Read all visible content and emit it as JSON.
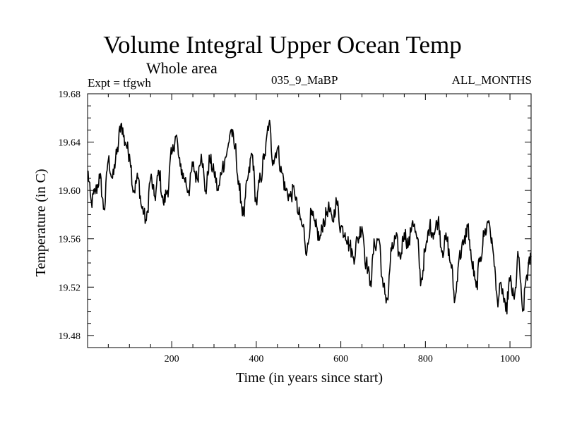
{
  "chart_data": {
    "type": "line",
    "title": "Volume Integral Upper Ocean Temp",
    "subtitle": "Whole area",
    "experiment_label": "Expt = tfgwh",
    "run_label": "035_9_MaBP",
    "months_label": "ALL_MONTHS",
    "xlabel": "Time (in years since start)",
    "ylabel": "Temperature (in C)",
    "xlim": [
      1,
      1050
    ],
    "ylim": [
      19.47,
      19.68
    ],
    "xticks": [
      200,
      400,
      600,
      800,
      1000
    ],
    "yticks": [
      19.48,
      19.52,
      19.56,
      19.6,
      19.64,
      19.68
    ],
    "ytick_labels": [
      "19.48",
      "19.52",
      "19.56",
      "19.60",
      "19.64",
      "19.68"
    ],
    "series": [
      {
        "name": "tfgwh",
        "color": "#000000",
        "x": [
          1,
          10,
          20,
          30,
          40,
          50,
          60,
          70,
          80,
          90,
          100,
          110,
          120,
          130,
          140,
          150,
          160,
          170,
          180,
          190,
          200,
          210,
          220,
          230,
          240,
          250,
          260,
          270,
          280,
          290,
          300,
          310,
          320,
          330,
          340,
          350,
          360,
          370,
          380,
          390,
          400,
          410,
          420,
          430,
          440,
          450,
          460,
          470,
          480,
          490,
          500,
          510,
          520,
          530,
          540,
          550,
          560,
          570,
          580,
          590,
          600,
          610,
          620,
          630,
          640,
          650,
          660,
          670,
          680,
          690,
          700,
          710,
          720,
          730,
          740,
          750,
          760,
          770,
          780,
          790,
          800,
          810,
          820,
          830,
          840,
          850,
          860,
          870,
          880,
          890,
          900,
          910,
          920,
          930,
          940,
          950,
          960,
          970,
          980,
          990,
          1000,
          1010,
          1020,
          1030,
          1040,
          1050
        ],
        "y": [
          19.615,
          19.59,
          19.6,
          19.61,
          19.585,
          19.625,
          19.61,
          19.63,
          19.655,
          19.64,
          19.63,
          19.6,
          19.61,
          19.585,
          19.575,
          19.61,
          19.595,
          19.615,
          19.59,
          19.6,
          19.63,
          19.645,
          19.62,
          19.61,
          19.6,
          19.62,
          19.61,
          19.63,
          19.6,
          19.625,
          19.615,
          19.6,
          19.62,
          19.63,
          19.65,
          19.635,
          19.6,
          19.58,
          19.61,
          19.63,
          19.59,
          19.61,
          19.63,
          19.655,
          19.625,
          19.635,
          19.615,
          19.6,
          19.595,
          19.6,
          19.58,
          19.57,
          19.55,
          19.58,
          19.57,
          19.56,
          19.575,
          19.585,
          19.575,
          19.59,
          19.57,
          19.565,
          19.555,
          19.545,
          19.56,
          19.57,
          19.54,
          19.525,
          19.555,
          19.56,
          19.52,
          19.51,
          19.55,
          19.56,
          19.545,
          19.565,
          19.555,
          19.575,
          19.56,
          19.525,
          19.55,
          19.57,
          19.565,
          19.575,
          19.55,
          19.56,
          19.54,
          19.51,
          19.545,
          19.555,
          19.57,
          19.54,
          19.52,
          19.545,
          19.565,
          19.575,
          19.55,
          19.51,
          19.52,
          19.5,
          19.525,
          19.51,
          19.545,
          19.5,
          19.53,
          19.545
        ]
      }
    ]
  }
}
